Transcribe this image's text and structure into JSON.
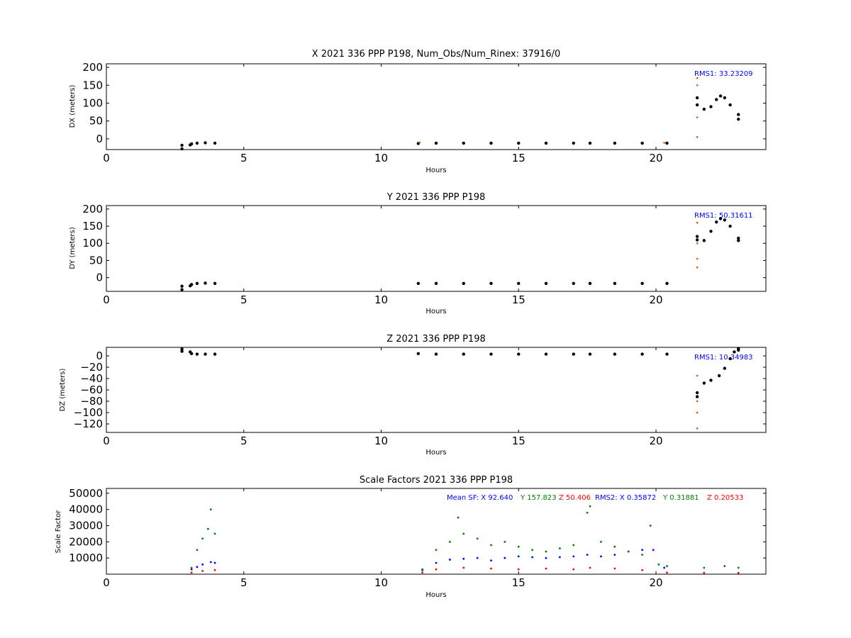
{
  "colors": {
    "black": "#000000",
    "orange": "#d2691e",
    "blue": "#0000ff",
    "green": "#008000",
    "red": "#ff0000"
  },
  "chart_data": [
    {
      "type": "scatter",
      "title": "X 2021 336 PPP  P198, Num_Obs/Num_Rinex: 37916/0",
      "xlabel": "Hours",
      "ylabel": "DX (meters)",
      "xlim": [
        0,
        24
      ],
      "ylim": [
        -30,
        210
      ],
      "xticks": [
        0,
        5,
        10,
        15,
        20
      ],
      "yticks": [
        0,
        50,
        100,
        150,
        200
      ],
      "annotations": [
        {
          "text": "RMS1: 33.23209",
          "color": "blue"
        }
      ],
      "series": [
        {
          "color": "black",
          "points": [
            [
              2.75,
              -28
            ],
            [
              2.75,
              -18
            ],
            [
              3.05,
              -17
            ],
            [
              3.1,
              -14
            ],
            [
              3.3,
              -12
            ],
            [
              3.6,
              -11
            ],
            [
              3.95,
              -12
            ],
            [
              11.35,
              -13
            ],
            [
              12,
              -12
            ],
            [
              13,
              -12
            ],
            [
              14,
              -12
            ],
            [
              15,
              -12
            ],
            [
              16,
              -12
            ],
            [
              17,
              -12
            ],
            [
              17.6,
              -12
            ],
            [
              18.5,
              -12
            ],
            [
              19.5,
              -12
            ],
            [
              20.4,
              -12
            ],
            [
              21.5,
              115
            ],
            [
              21.5,
              95
            ],
            [
              21.75,
              83
            ],
            [
              22,
              90
            ],
            [
              22.2,
              110
            ],
            [
              22.35,
              120
            ],
            [
              22.5,
              115
            ],
            [
              22.7,
              95
            ],
            [
              23,
              68
            ],
            [
              23,
              55
            ]
          ]
        },
        {
          "color": "orange",
          "points": [
            [
              21.5,
              170
            ],
            [
              21.5,
              150
            ],
            [
              21.5,
              60
            ],
            [
              21.5,
              5
            ],
            [
              11.4,
              -10
            ],
            [
              20.3,
              -11
            ]
          ]
        }
      ]
    },
    {
      "type": "scatter",
      "title": "Y 2021 336 PPP  P198",
      "xlabel": "Hours",
      "ylabel": "DY (meters)",
      "xlim": [
        0,
        24
      ],
      "ylim": [
        -40,
        210
      ],
      "xticks": [
        0,
        5,
        10,
        15,
        20
      ],
      "yticks": [
        0,
        50,
        100,
        150,
        200
      ],
      "annotations": [
        {
          "text": "RMS1: 50.31611",
          "color": "blue"
        }
      ],
      "series": [
        {
          "color": "black",
          "points": [
            [
              2.75,
              -35
            ],
            [
              2.75,
              -25
            ],
            [
              3.05,
              -24
            ],
            [
              3.1,
              -20
            ],
            [
              3.3,
              -17
            ],
            [
              3.6,
              -16
            ],
            [
              3.95,
              -17
            ],
            [
              11.35,
              -17
            ],
            [
              12,
              -17
            ],
            [
              13,
              -17
            ],
            [
              14,
              -17
            ],
            [
              15,
              -17
            ],
            [
              16,
              -17
            ],
            [
              17,
              -17
            ],
            [
              17.6,
              -17
            ],
            [
              18.5,
              -17
            ],
            [
              19.5,
              -17
            ],
            [
              20.4,
              -17
            ],
            [
              21.5,
              120
            ],
            [
              21.5,
              110
            ],
            [
              21.75,
              108
            ],
            [
              22,
              135
            ],
            [
              22.2,
              162
            ],
            [
              22.35,
              172
            ],
            [
              22.5,
              168
            ],
            [
              22.7,
              150
            ],
            [
              23,
              115
            ],
            [
              23,
              108
            ]
          ]
        },
        {
          "color": "orange",
          "points": [
            [
              21.5,
              160
            ],
            [
              21.5,
              100
            ],
            [
              21.5,
              55
            ],
            [
              21.5,
              30
            ]
          ]
        }
      ]
    },
    {
      "type": "scatter",
      "title": "Z 2021 336 PPP  P198",
      "xlabel": "Hours",
      "ylabel": "DZ (meters)",
      "xlim": [
        0,
        24
      ],
      "ylim": [
        -135,
        15
      ],
      "xticks": [
        0,
        5,
        10,
        15,
        20
      ],
      "yticks": [
        -120,
        -100,
        -80,
        -60,
        -40,
        -20,
        0
      ],
      "annotations": [
        {
          "text": "RMS1: 10.34983",
          "color": "blue"
        }
      ],
      "series": [
        {
          "color": "black",
          "points": [
            [
              2.75,
              12
            ],
            [
              2.75,
              8
            ],
            [
              3.05,
              7
            ],
            [
              3.1,
              4
            ],
            [
              3.3,
              3
            ],
            [
              3.6,
              3
            ],
            [
              3.95,
              3
            ],
            [
              11.35,
              4
            ],
            [
              12,
              3
            ],
            [
              13,
              3
            ],
            [
              14,
              3
            ],
            [
              15,
              3
            ],
            [
              16,
              3
            ],
            [
              17,
              3
            ],
            [
              17.6,
              3
            ],
            [
              18.5,
              3
            ],
            [
              19.5,
              3
            ],
            [
              20.4,
              3
            ],
            [
              21.5,
              -65
            ],
            [
              21.5,
              -72
            ],
            [
              21.75,
              -48
            ],
            [
              22,
              -43
            ],
            [
              22.3,
              -35
            ],
            [
              22.5,
              -22
            ],
            [
              22.7,
              -5
            ],
            [
              22.85,
              7
            ],
            [
              23,
              10
            ],
            [
              23,
              13
            ]
          ]
        },
        {
          "color": "orange",
          "points": [
            [
              21.5,
              -35
            ],
            [
              21.5,
              -80
            ],
            [
              21.5,
              -100
            ],
            [
              21.5,
              -128
            ]
          ]
        }
      ]
    },
    {
      "type": "scatter",
      "title": "Scale Factors 2021 336 PPP  P198",
      "xlabel": "Hours",
      "ylabel": "Scale Factor",
      "xlim": [
        0,
        24
      ],
      "ylim": [
        0,
        53000
      ],
      "xticks": [
        0,
        5,
        10,
        15,
        20
      ],
      "yticks": [
        10000,
        20000,
        30000,
        40000,
        50000
      ],
      "legend_placement": "top-right",
      "annotations": [
        {
          "text": "Mean SF: X  92.640",
          "color": "blue"
        },
        {
          "text": "Y 157.823",
          "color": "green"
        },
        {
          "text": "Z  50.406",
          "color": "red"
        },
        {
          "text": "RMS2: X  0.35872",
          "color": "blue"
        },
        {
          "text": "Y  0.31881",
          "color": "green"
        },
        {
          "text": "Z  0.20533",
          "color": "red"
        }
      ],
      "series": [
        {
          "name": "X",
          "color": "blue",
          "points": [
            [
              3.1,
              3000
            ],
            [
              3.3,
              4500
            ],
            [
              3.5,
              6000
            ],
            [
              3.8,
              7500
            ],
            [
              3.95,
              7000
            ],
            [
              11.5,
              2500
            ],
            [
              12,
              7000
            ],
            [
              12.5,
              9000
            ],
            [
              13,
              9500
            ],
            [
              13.5,
              10000
            ],
            [
              14,
              8500
            ],
            [
              14.5,
              10000
            ],
            [
              15,
              11000
            ],
            [
              15.5,
              10500
            ],
            [
              16,
              10000
            ],
            [
              16.5,
              10500
            ],
            [
              17,
              11000
            ],
            [
              17.5,
              12000
            ],
            [
              18,
              11000
            ],
            [
              18.5,
              12000
            ],
            [
              19,
              14000
            ],
            [
              19.5,
              15000
            ],
            [
              19.9,
              15000
            ],
            [
              20.3,
              4000
            ]
          ]
        },
        {
          "name": "Y",
          "color": "green",
          "points": [
            [
              3.1,
              4000
            ],
            [
              3.3,
              15000
            ],
            [
              3.5,
              22000
            ],
            [
              3.7,
              28000
            ],
            [
              3.8,
              40000
            ],
            [
              3.95,
              25000
            ],
            [
              11.5,
              3000
            ],
            [
              12,
              15000
            ],
            [
              12.5,
              20000
            ],
            [
              12.8,
              35000
            ],
            [
              13,
              25000
            ],
            [
              13.5,
              22000
            ],
            [
              14,
              18000
            ],
            [
              14.5,
              20000
            ],
            [
              15,
              17000
            ],
            [
              15.5,
              15000
            ],
            [
              16,
              14000
            ],
            [
              16.5,
              16000
            ],
            [
              17,
              18000
            ],
            [
              17.5,
              38000
            ],
            [
              17.6,
              42000
            ],
            [
              18,
              20000
            ],
            [
              18.5,
              17000
            ],
            [
              19,
              14000
            ],
            [
              19.5,
              12000
            ],
            [
              19.8,
              30000
            ],
            [
              20.1,
              6000
            ],
            [
              20.4,
              5000
            ],
            [
              21.75,
              4000
            ],
            [
              22.5,
              5000
            ],
            [
              23,
              4000
            ]
          ]
        },
        {
          "name": "Z",
          "color": "red",
          "points": [
            [
              3.1,
              1000
            ],
            [
              3.5,
              2000
            ],
            [
              3.95,
              2500
            ],
            [
              11.5,
              1000
            ],
            [
              12,
              3000
            ],
            [
              13,
              4000
            ],
            [
              14,
              3500
            ],
            [
              15,
              3000
            ],
            [
              16,
              3500
            ],
            [
              17,
              3000
            ],
            [
              17.6,
              4000
            ],
            [
              18.5,
              3500
            ],
            [
              19.5,
              2500
            ],
            [
              20.4,
              1000
            ],
            [
              21.75,
              800
            ],
            [
              23,
              800
            ]
          ]
        }
      ]
    }
  ]
}
